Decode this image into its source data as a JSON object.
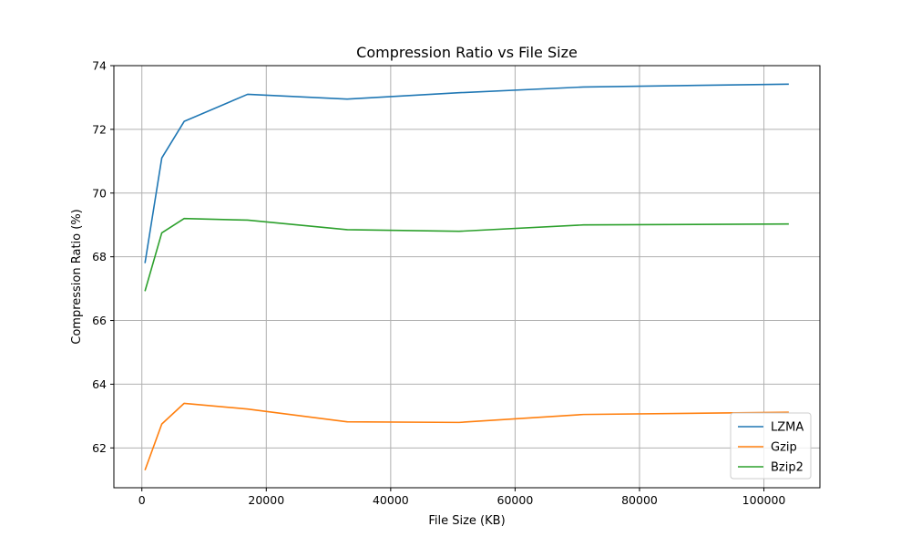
{
  "chart_data": {
    "type": "line",
    "title": "Compression Ratio vs File Size",
    "xlabel": "File Size (KB)",
    "ylabel": "Compression Ratio (%)",
    "xlim": [
      -4500,
      109000
    ],
    "ylim": [
      60.75,
      74.0
    ],
    "xticks": [
      0,
      20000,
      40000,
      60000,
      80000,
      100000
    ],
    "yticks": [
      62,
      64,
      66,
      68,
      70,
      72,
      74
    ],
    "grid": true,
    "legend_position": "lower-right",
    "series": [
      {
        "name": "LZMA",
        "color": "#1f77b4",
        "x": [
          500,
          3200,
          6800,
          17000,
          33000,
          51000,
          71000,
          104000
        ],
        "y": [
          67.8,
          71.1,
          72.25,
          73.1,
          72.95,
          73.15,
          73.33,
          73.42
        ]
      },
      {
        "name": "Gzip",
        "color": "#ff7f0e",
        "x": [
          500,
          3200,
          6800,
          17000,
          33000,
          51000,
          71000,
          104000
        ],
        "y": [
          61.3,
          62.75,
          63.4,
          63.22,
          62.82,
          62.8,
          63.05,
          63.12
        ]
      },
      {
        "name": "Bzip2",
        "color": "#2ca02c",
        "x": [
          500,
          3200,
          6800,
          17000,
          33000,
          51000,
          71000,
          104000
        ],
        "y": [
          66.92,
          68.75,
          69.2,
          69.15,
          68.85,
          68.8,
          69.0,
          69.03
        ]
      }
    ]
  }
}
